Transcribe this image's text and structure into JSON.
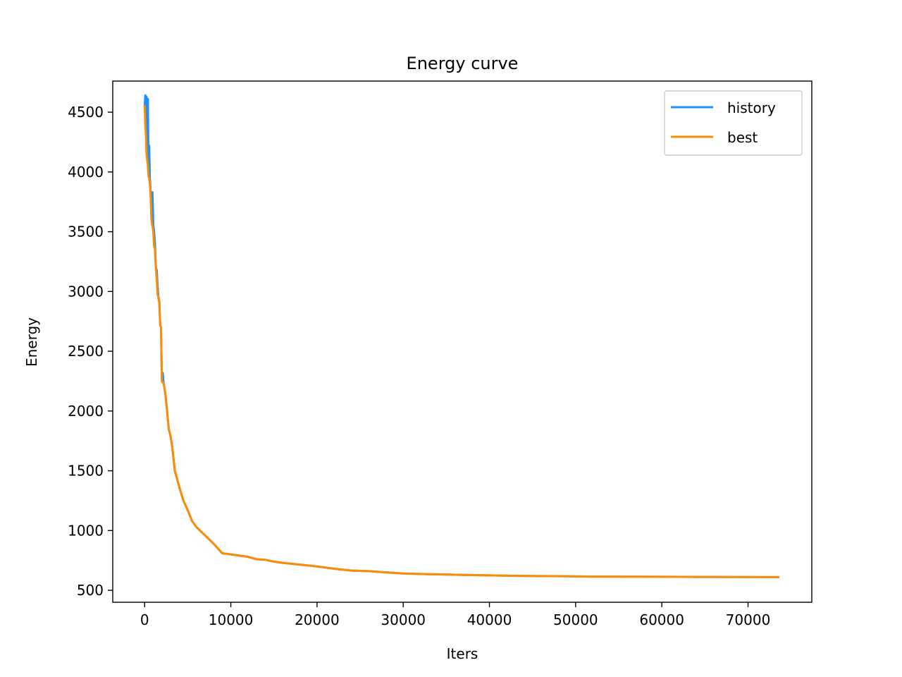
{
  "chart_data": {
    "type": "line",
    "title": "Energy curve",
    "xlabel": "Iters",
    "ylabel": "Energy",
    "xlim": [
      -3700,
      77400
    ],
    "ylim": [
      400,
      4760
    ],
    "xticks": [
      0,
      10000,
      20000,
      30000,
      40000,
      50000,
      60000,
      70000
    ],
    "yticks": [
      500,
      1000,
      1500,
      2000,
      2500,
      3000,
      3500,
      4000,
      4500
    ],
    "legend_position": "upper-right",
    "grid": false,
    "series": [
      {
        "name": "history",
        "color": "#1e90ff",
        "x": [
          0,
          80,
          150,
          220,
          300,
          380,
          450,
          530,
          600,
          700,
          800,
          900,
          1000,
          1100,
          1200,
          1300,
          1400,
          1500,
          1600,
          1700,
          1800,
          1900,
          2000,
          2100,
          2200,
          2400,
          2600,
          2800,
          3000,
          3200,
          3500,
          4000,
          4500,
          5000,
          5500,
          6000,
          7000,
          8000,
          9000,
          10000,
          11000,
          12000,
          13000,
          14000,
          15000,
          16000,
          18000,
          20000,
          22000,
          24000,
          26000,
          28000,
          30000,
          33000,
          36000,
          40000,
          44000,
          48000,
          52000,
          56000,
          60000,
          64000,
          68000,
          73500
        ],
        "y": [
          4550,
          4640,
          4420,
          4630,
          4180,
          4610,
          4000,
          4220,
          3960,
          3830,
          3600,
          3830,
          3560,
          3500,
          3400,
          3200,
          3180,
          3050,
          2950,
          2920,
          2720,
          2700,
          2250,
          2320,
          2230,
          2150,
          2000,
          1850,
          1790,
          1700,
          1500,
          1370,
          1250,
          1170,
          1080,
          1030,
          960,
          890,
          810,
          800,
          790,
          780,
          760,
          755,
          740,
          730,
          715,
          700,
          680,
          665,
          660,
          650,
          640,
          635,
          630,
          625,
          620,
          618,
          615,
          614,
          613,
          612,
          611,
          610
        ]
      },
      {
        "name": "best",
        "color": "#ff8c00",
        "x": [
          0,
          80,
          150,
          220,
          300,
          380,
          450,
          530,
          600,
          700,
          800,
          900,
          1000,
          1100,
          1200,
          1300,
          1400,
          1500,
          1600,
          1700,
          1800,
          1900,
          2000,
          2100,
          2200,
          2400,
          2600,
          2800,
          3000,
          3200,
          3500,
          4000,
          4500,
          5000,
          5500,
          6000,
          7000,
          8000,
          9000,
          10000,
          11000,
          12000,
          13000,
          14000,
          15000,
          16000,
          18000,
          20000,
          22000,
          24000,
          26000,
          28000,
          30000,
          33000,
          36000,
          40000,
          44000,
          48000,
          52000,
          56000,
          60000,
          64000,
          68000,
          73500
        ],
        "y": [
          4550,
          4400,
          4300,
          4150,
          4100,
          4050,
          3960,
          3950,
          3900,
          3800,
          3600,
          3550,
          3500,
          3380,
          3350,
          3200,
          3100,
          2980,
          2950,
          2900,
          2720,
          2700,
          2250,
          2240,
          2230,
          2150,
          2000,
          1850,
          1790,
          1700,
          1500,
          1370,
          1250,
          1170,
          1080,
          1030,
          960,
          890,
          810,
          800,
          790,
          780,
          760,
          755,
          740,
          730,
          715,
          700,
          680,
          665,
          660,
          650,
          640,
          635,
          630,
          625,
          620,
          618,
          615,
          614,
          613,
          612,
          611,
          610
        ]
      }
    ]
  }
}
